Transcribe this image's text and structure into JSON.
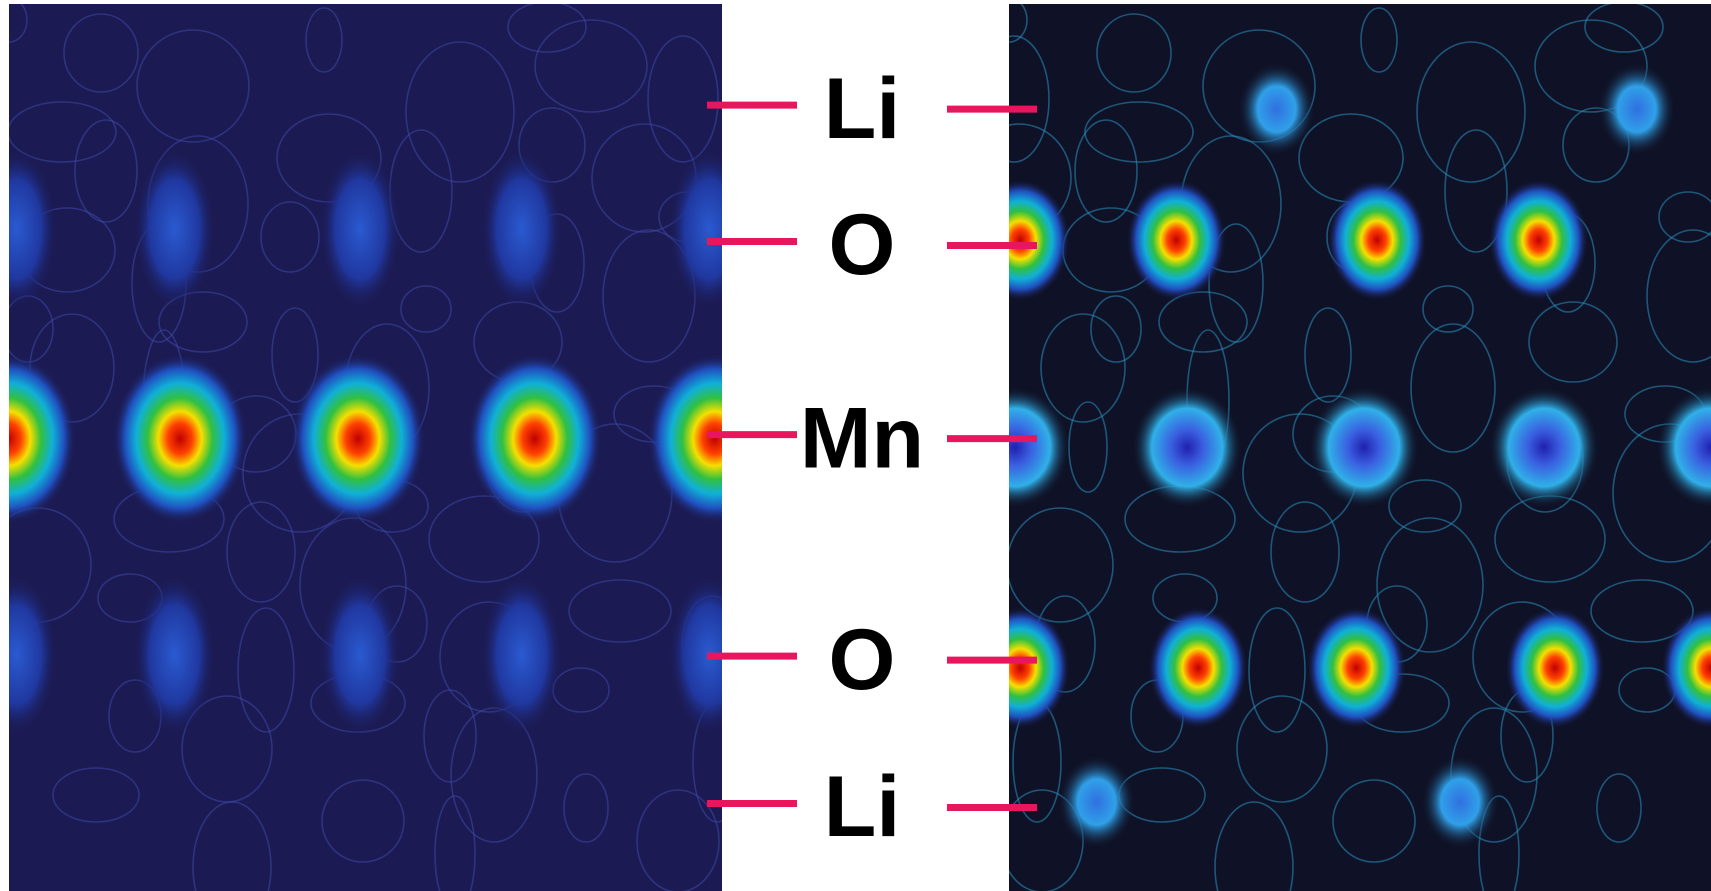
{
  "labels": [
    "Li",
    "O",
    "Mn",
    "O",
    "Li"
  ]
}
